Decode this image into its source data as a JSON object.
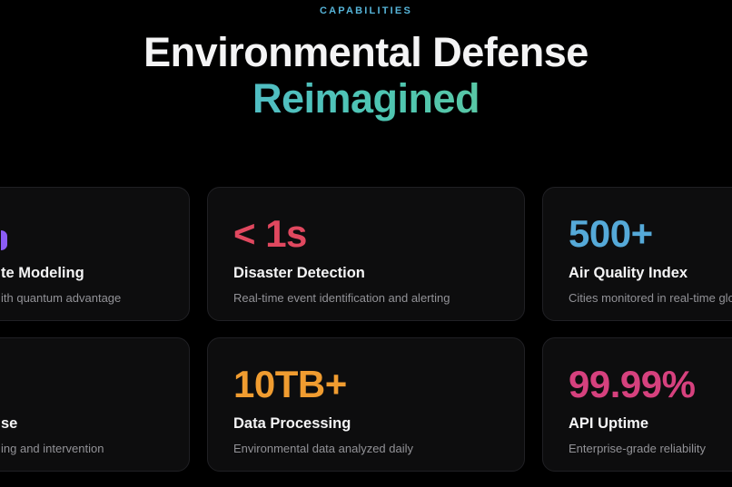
{
  "header": {
    "eyebrow": "CAPABILITIES",
    "title_line1": "Environmental Defense",
    "title_line2": "Reimagined"
  },
  "colors": {
    "page_background": "#000000",
    "card_background": "#0d0d0e",
    "card_border": "#202024",
    "eyebrow": "#56b4d8",
    "title": "#f4f4f5",
    "title_gradient_start": "#55aee6",
    "title_gradient_end": "#72cc85",
    "label_text": "#f5f5f6",
    "description_text": "#929297",
    "stat_purple": "#8b5cf6",
    "stat_red": "#e0485f",
    "stat_blue": "#55a9d8",
    "stat_orange": "#f09c30",
    "stat_pink": "#d6417e"
  },
  "cards": [
    {
      "position": "top-left",
      "clipped_edge": "left",
      "value": "",
      "value_note": "purple stat number cut off at screen edge",
      "value_color": "#8b5cf6",
      "label": "te Modeling",
      "description": "ith quantum advantage"
    },
    {
      "position": "top-center",
      "clipped_edge": "none",
      "value": "< 1s",
      "value_color": "#e0485f",
      "label": "Disaster Detection",
      "description": "Real-time event identification and alerting"
    },
    {
      "position": "top-right",
      "clipped_edge": "right",
      "value": "500+",
      "value_color": "#55a9d8",
      "label": "Air Quality Index",
      "description": "Cities monitored in real-time globall"
    },
    {
      "position": "bottom-left",
      "clipped_edge": "left",
      "value": "",
      "value_note": "stat number fully cut off at screen edge",
      "value_color": "",
      "label": "se",
      "description": "ing and intervention"
    },
    {
      "position": "bottom-center",
      "clipped_edge": "none",
      "value": "10TB+",
      "value_color": "#f09c30",
      "label": "Data Processing",
      "description": "Environmental data analyzed daily"
    },
    {
      "position": "bottom-right",
      "clipped_edge": "none",
      "value": "99.99%",
      "value_color": "#d6417e",
      "label": "API Uptime",
      "description": "Enterprise-grade reliability"
    }
  ]
}
